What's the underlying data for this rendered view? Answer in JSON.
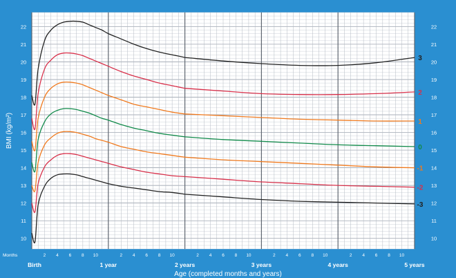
{
  "chart_data": {
    "type": "line",
    "xlabel": "Age (completed months and years)",
    "ylabel": "BMI (kg/m²)",
    "months_label": "Months",
    "ylim": [
      9.4,
      22.8
    ],
    "xlim": [
      0,
      60
    ],
    "y_ticks": [
      "10",
      "11",
      "12",
      "13",
      "14",
      "15",
      "16",
      "17",
      "18",
      "19",
      "20",
      "21",
      "22"
    ],
    "month_ticks": [
      "2",
      "4",
      "6",
      "8",
      "10"
    ],
    "year_labels": [
      "Birth",
      "1 year",
      "2 years",
      "3 years",
      "4 years",
      "5 years"
    ],
    "grid": true,
    "series": [
      {
        "name": "3",
        "color": "#222222",
        "x": [
          0,
          0.5,
          1,
          2,
          3,
          4,
          5,
          6,
          7,
          8,
          9,
          10,
          11,
          12,
          14,
          16,
          18,
          20,
          22,
          24,
          30,
          36,
          42,
          48,
          54,
          60
        ],
        "values": [
          18.1,
          17.6,
          19.6,
          21.2,
          21.8,
          22.1,
          22.25,
          22.3,
          22.3,
          22.25,
          22.1,
          21.95,
          21.8,
          21.6,
          21.3,
          21.0,
          20.75,
          20.55,
          20.4,
          20.25,
          20.05,
          19.9,
          19.8,
          19.8,
          19.95,
          20.25
        ]
      },
      {
        "name": "2",
        "color": "#d8304a",
        "x": [
          0,
          0.5,
          1,
          2,
          3,
          4,
          5,
          6,
          7,
          8,
          9,
          10,
          11,
          12,
          14,
          16,
          18,
          20,
          22,
          24,
          30,
          36,
          42,
          48,
          54,
          60
        ],
        "values": [
          16.8,
          16.2,
          18.2,
          19.6,
          20.1,
          20.4,
          20.5,
          20.5,
          20.45,
          20.35,
          20.2,
          20.05,
          19.9,
          19.75,
          19.45,
          19.2,
          19.0,
          18.8,
          18.65,
          18.5,
          18.35,
          18.2,
          18.15,
          18.15,
          18.2,
          18.3
        ]
      },
      {
        "name": "1",
        "color": "#f07a1e",
        "x": [
          0,
          0.5,
          1,
          2,
          3,
          4,
          5,
          6,
          7,
          8,
          9,
          10,
          11,
          12,
          14,
          16,
          18,
          20,
          22,
          24,
          30,
          36,
          42,
          48,
          54,
          60
        ],
        "values": [
          15.5,
          15.0,
          16.8,
          18.0,
          18.5,
          18.75,
          18.85,
          18.85,
          18.8,
          18.7,
          18.55,
          18.4,
          18.25,
          18.1,
          17.85,
          17.6,
          17.45,
          17.3,
          17.15,
          17.05,
          16.95,
          16.85,
          16.75,
          16.7,
          16.65,
          16.65
        ]
      },
      {
        "name": "0",
        "color": "#118a4a",
        "x": [
          0,
          0.5,
          1,
          2,
          3,
          4,
          5,
          6,
          7,
          8,
          9,
          10,
          11,
          12,
          14,
          16,
          18,
          20,
          22,
          24,
          30,
          36,
          42,
          48,
          54,
          60
        ],
        "values": [
          14.3,
          13.8,
          15.6,
          16.6,
          17.05,
          17.25,
          17.35,
          17.35,
          17.3,
          17.2,
          17.1,
          16.95,
          16.8,
          16.7,
          16.45,
          16.25,
          16.1,
          15.95,
          15.85,
          15.75,
          15.6,
          15.5,
          15.4,
          15.3,
          15.25,
          15.2
        ]
      },
      {
        "name": "-1",
        "color": "#f07a1e",
        "x": [
          0,
          0.5,
          1,
          2,
          3,
          4,
          5,
          6,
          7,
          8,
          9,
          10,
          11,
          12,
          14,
          16,
          18,
          20,
          22,
          24,
          30,
          36,
          42,
          48,
          54,
          60
        ],
        "values": [
          13.0,
          12.7,
          14.3,
          15.3,
          15.7,
          15.95,
          16.05,
          16.05,
          16.0,
          15.9,
          15.8,
          15.65,
          15.55,
          15.45,
          15.2,
          15.05,
          14.9,
          14.8,
          14.7,
          14.6,
          14.45,
          14.35,
          14.25,
          14.15,
          14.05,
          14.0
        ]
      },
      {
        "name": "-2",
        "color": "#d8304a",
        "x": [
          0,
          0.5,
          1,
          2,
          3,
          4,
          5,
          6,
          7,
          8,
          9,
          10,
          11,
          12,
          14,
          16,
          18,
          20,
          22,
          24,
          30,
          36,
          42,
          48,
          54,
          60
        ],
        "values": [
          12.0,
          11.5,
          13.1,
          14.05,
          14.45,
          14.7,
          14.8,
          14.8,
          14.75,
          14.65,
          14.55,
          14.45,
          14.35,
          14.25,
          14.05,
          13.9,
          13.75,
          13.65,
          13.55,
          13.5,
          13.35,
          13.2,
          13.1,
          13.0,
          12.95,
          12.9
        ]
      },
      {
        "name": "-3",
        "color": "#222222",
        "x": [
          0,
          0.5,
          1,
          2,
          3,
          4,
          5,
          6,
          7,
          8,
          9,
          10,
          11,
          12,
          14,
          16,
          18,
          20,
          22,
          24,
          30,
          36,
          42,
          48,
          54,
          60
        ],
        "values": [
          10.3,
          9.8,
          11.9,
          12.95,
          13.4,
          13.6,
          13.65,
          13.65,
          13.6,
          13.5,
          13.4,
          13.3,
          13.2,
          13.1,
          12.95,
          12.85,
          12.75,
          12.65,
          12.6,
          12.5,
          12.35,
          12.2,
          12.1,
          12.05,
          12.0,
          11.95
        ]
      }
    ],
    "break_at": 24
  }
}
